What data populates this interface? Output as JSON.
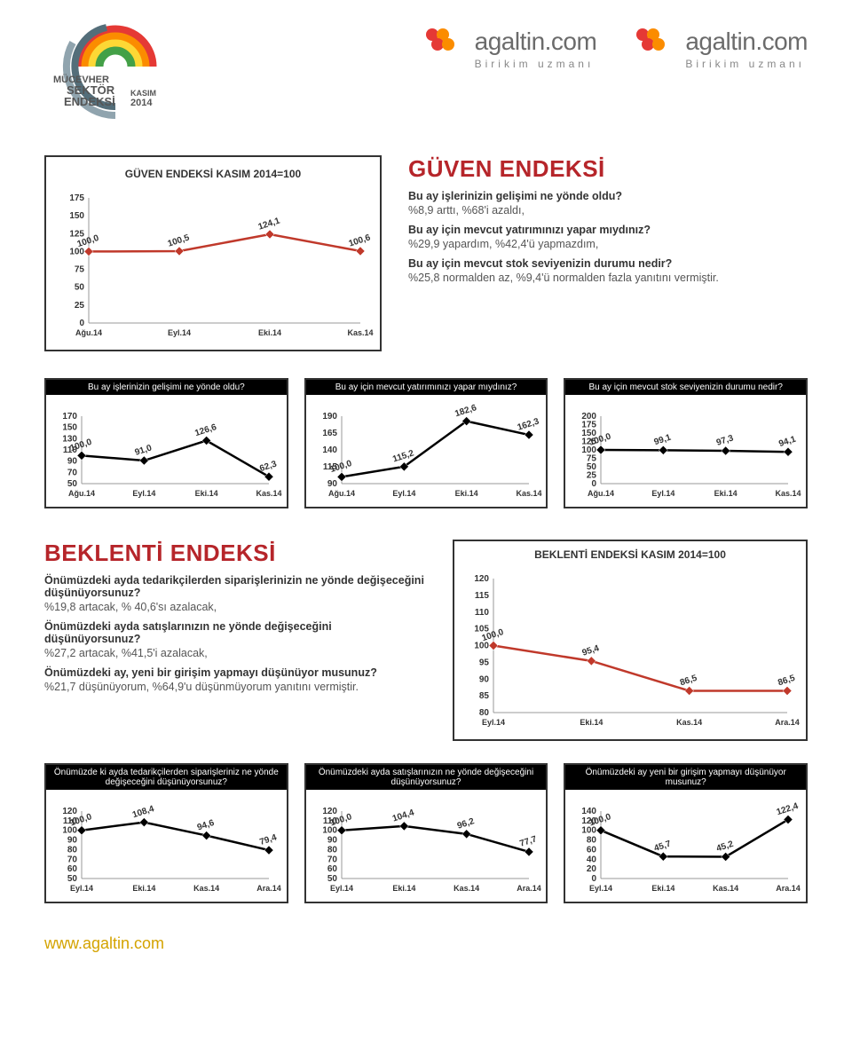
{
  "header": {
    "index_label_1": "MÜCEVHER",
    "index_label_2": "SEKTÖR",
    "index_label_3": "ENDEKSİ",
    "month": "KASIM",
    "year": "2014",
    "brand_name": "agaltin.com",
    "brand_tagline": "Birikim uzmanı"
  },
  "colors": {
    "red": "#c0392b",
    "darkred": "#b6252a",
    "black": "#000000",
    "text": "#333333",
    "gold": "#d4a300",
    "grid": "#dddddd",
    "brand_red": "#e53935",
    "brand_orange": "#fb8c00"
  },
  "guven_main": {
    "type": "line",
    "title": "GÜVEN ENDEKSİ KASIM 2014=100",
    "categories": [
      "Ağu.14",
      "Eyl.14",
      "Eki.14",
      "Kas.14"
    ],
    "values": [
      100.0,
      100.5,
      124.1,
      100.6
    ],
    "labels": [
      "100,0",
      "100,5",
      "124,1",
      "100,6"
    ],
    "ylim": [
      0,
      175
    ],
    "ytick_step": 25,
    "yticks": [
      "0",
      "25",
      "50",
      "75",
      "100",
      "125",
      "150",
      "175"
    ],
    "line_color": "#c0392b",
    "marker_color": "#c0392b",
    "marker": "diamond"
  },
  "guven_text": {
    "title": "GÜVEN ENDEKSİ",
    "q1": "Bu ay işlerinizin gelişimi ne yönde oldu?",
    "a1": "%8,9 arttı, %68'i azaldı,",
    "q2": "Bu ay için mevcut yatırımınızı yapar mıydınız?",
    "a2": "%29,9 yapardım, %42,4'ü yapmazdım,",
    "q3": "Bu ay için mevcut stok seviyenizin durumu nedir?",
    "a3": "%25,8 normalden az, %9,4'ü normalden fazla yanıtını vermiştir."
  },
  "guven_sub": [
    {
      "title": "Bu ay işlerinizin gelişimi ne yönde oldu?",
      "categories": [
        "Ağu.14",
        "Eyl.14",
        "Eki.14",
        "Kas.14"
      ],
      "values": [
        100.0,
        91.0,
        126.6,
        62.3
      ],
      "labels": [
        "100,0",
        "91,0",
        "126,6",
        "62,3"
      ],
      "ylim": [
        50,
        170
      ],
      "ytick_step": 20,
      "yticks": [
        "50",
        "70",
        "90",
        "110",
        "130",
        "150",
        "170"
      ],
      "line_color": "#000000",
      "marker": "diamond"
    },
    {
      "title": "Bu ay için mevcut yatırımınızı yapar mıydınız?",
      "categories": [
        "Ağu.14",
        "Eyl.14",
        "Eki.14",
        "Kas.14"
      ],
      "values": [
        100.0,
        115.2,
        182.6,
        162.3
      ],
      "labels": [
        "100,0",
        "115,2",
        "182,6",
        "162,3"
      ],
      "ylim": [
        90,
        190
      ],
      "ytick_step": 25,
      "yticks": [
        "90",
        "115",
        "140",
        "165",
        "190"
      ],
      "line_color": "#000000",
      "marker": "diamond"
    },
    {
      "title": "Bu ay için mevcut stok seviyenizin durumu nedir?",
      "categories": [
        "Ağu.14",
        "Eyl.14",
        "Eki.14",
        "Kas.14"
      ],
      "values": [
        100.0,
        99.1,
        97.3,
        94.1
      ],
      "labels": [
        "100,0",
        "99,1",
        "97,3",
        "94,1"
      ],
      "ylim": [
        0,
        200
      ],
      "ytick_step": 25,
      "yticks": [
        "0",
        "25",
        "50",
        "75",
        "100",
        "125",
        "150",
        "175",
        "200"
      ],
      "line_color": "#000000",
      "marker": "diamond"
    }
  ],
  "beklenti_text": {
    "title": "BEKLENTİ ENDEKSİ",
    "q1": "Önümüzdeki ayda tedarikçilerden siparişlerinizin ne yönde değişeceğini düşünüyorsunuz?",
    "a1": "%19,8 artacak, % 40,6'sı azalacak,",
    "q2": "Önümüzdeki ayda satışlarınızın ne yönde değişeceğini düşünüyorsunuz?",
    "a2": "%27,2 artacak, %41,5'i azalacak,",
    "q3": "Önümüzdeki ay, yeni bir girişim yapmayı düşünüyor musunuz?",
    "a3": "%21,7 düşünüyorum, %64,9'u düşünmüyorum yanıtını vermiştir."
  },
  "beklenti_main": {
    "type": "line",
    "title": "BEKLENTİ ENDEKSİ KASIM 2014=100",
    "categories": [
      "Eyl.14",
      "Eki.14",
      "Kas.14",
      "Ara.14"
    ],
    "values": [
      100.0,
      95.4,
      86.5,
      86.5
    ],
    "labels": [
      "100,0",
      "95,4",
      "86,5",
      "86,5"
    ],
    "ylim": [
      80,
      120
    ],
    "ytick_step": 5,
    "yticks": [
      "80",
      "85",
      "90",
      "95",
      "100",
      "105",
      "110",
      "115",
      "120"
    ],
    "line_color": "#c0392b",
    "marker": "diamond"
  },
  "beklenti_sub": [
    {
      "title": "Önümüzde ki ayda tedarikçilerden siparişleriniz ne yönde değişeceğini düşünüyorsunuz?",
      "categories": [
        "Eyl.14",
        "Eki.14",
        "Kas.14",
        "Ara.14"
      ],
      "values": [
        100.0,
        108.4,
        94.6,
        79.4
      ],
      "labels": [
        "100,0",
        "108,4",
        "94,6",
        "79,4"
      ],
      "ylim": [
        50,
        120
      ],
      "ytick_step": 10,
      "yticks": [
        "50",
        "60",
        "70",
        "80",
        "90",
        "100",
        "110",
        "120"
      ],
      "line_color": "#000000",
      "marker": "diamond"
    },
    {
      "title": "Önümüzdeki ayda satışlarınızın ne yönde değişeceğini düşünüyorsunuz?",
      "categories": [
        "Eyl.14",
        "Eki.14",
        "Kas.14",
        "Ara.14"
      ],
      "values": [
        100.0,
        104.4,
        96.2,
        77.7
      ],
      "labels": [
        "100,0",
        "104,4",
        "96,2",
        "77,7"
      ],
      "ylim": [
        50,
        120
      ],
      "ytick_step": 10,
      "yticks": [
        "50",
        "60",
        "70",
        "80",
        "90",
        "100",
        "110",
        "120"
      ],
      "line_color": "#000000",
      "marker": "diamond"
    },
    {
      "title": "Önümüzdeki ay yeni bir girişim yapmayı düşünüyor musunuz?",
      "categories": [
        "Eyl.14",
        "Eki.14",
        "Kas.14",
        "Ara.14"
      ],
      "values": [
        100.0,
        45.7,
        45.2,
        122.4
      ],
      "labels": [
        "100,0",
        "45,7",
        "45,2",
        "122,4"
      ],
      "ylim": [
        0,
        140
      ],
      "ytick_step": 20,
      "yticks": [
        "0",
        "20",
        "40",
        "60",
        "80",
        "100",
        "120",
        "140"
      ],
      "line_color": "#000000",
      "marker": "diamond"
    }
  ],
  "footer": {
    "url": "www.agaltin.com"
  }
}
